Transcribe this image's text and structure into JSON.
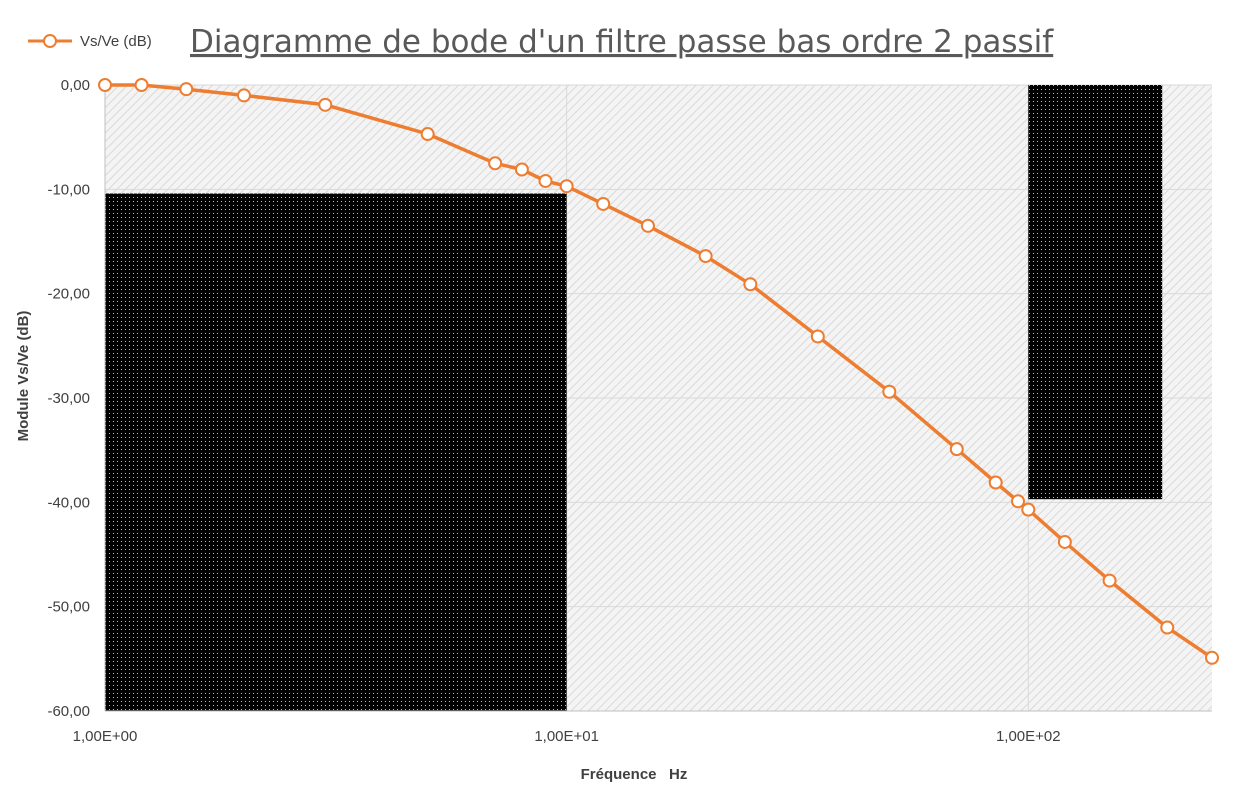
{
  "chart_data": {
    "type": "line",
    "title": "Diagramme de bode d'un filtre passe bas ordre 2 passif",
    "xlabel": "Fréquence   Hz",
    "ylabel": "Module Vs/Ve (dB)",
    "x_scale": "log",
    "xlim": [
      1,
      250
    ],
    "ylim": [
      -60,
      0
    ],
    "x_ticks": [
      1,
      10,
      100
    ],
    "x_tick_labels": [
      "1,00E+00",
      "1,00E+01",
      "1,00E+02"
    ],
    "y_ticks": [
      0,
      -10,
      -20,
      -30,
      -40,
      -50,
      -60
    ],
    "y_tick_labels": [
      "0,00",
      "-10,00",
      "-20,00",
      "-30,00",
      "-40,00",
      "-50,00",
      "-60,00"
    ],
    "grid": true,
    "legend_position": "top-left",
    "color": "#ED7D31",
    "series": [
      {
        "name": "Vs/Ve (dB)",
        "x": [
          1,
          1.2,
          1.5,
          2,
          3,
          5,
          7,
          8,
          9,
          10,
          12,
          15,
          20,
          25,
          35,
          50,
          70,
          85,
          95,
          100,
          120,
          150,
          200,
          250
        ],
        "y": [
          0,
          0,
          -0.4,
          -1,
          -1.9,
          -4.7,
          -7.5,
          -8.1,
          -9.2,
          -9.7,
          -11.4,
          -13.5,
          -16.4,
          -19.1,
          -24.1,
          -29.4,
          -34.9,
          -38.1,
          -39.9,
          -40.7,
          -43.8,
          -47.5,
          -52,
          -54.9
        ]
      }
    ],
    "annotations": [
      {
        "kind": "filled-rectangle",
        "pattern": "dotted-black",
        "x_range": [
          1,
          10
        ],
        "y_range": [
          -60,
          -10.4
        ]
      },
      {
        "kind": "filled-rectangle",
        "pattern": "dotted-black",
        "x_range": [
          100,
          195
        ],
        "y_range": [
          -39.7,
          0
        ]
      }
    ]
  }
}
